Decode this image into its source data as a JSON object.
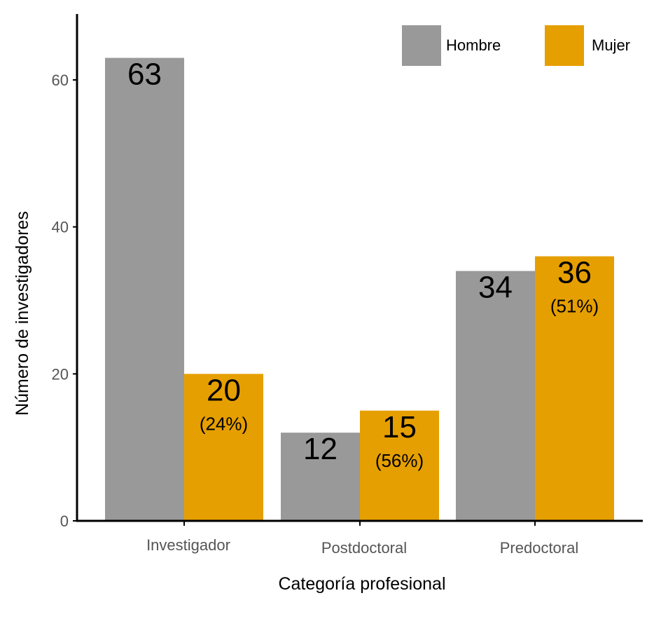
{
  "chart_data": {
    "type": "bar",
    "xlabel": "Categoría profesional",
    "ylabel": "Número de investigadores",
    "categories": [
      "Investigador",
      "Postdoctoral",
      "Predoctoral"
    ],
    "series": [
      {
        "name": "Hombre",
        "color": "#999999",
        "values": [
          63,
          12,
          34
        ]
      },
      {
        "name": "Mujer",
        "color": "#E69F00",
        "values": [
          20,
          15,
          36
        ],
        "pct_labels": [
          "(24%)",
          "(56%)",
          "(51%)"
        ]
      }
    ],
    "yticks": [
      "0",
      "20",
      "40",
      "60"
    ],
    "ylim": [
      0,
      60
    ],
    "legend": {
      "position": "top-right"
    },
    "grid": false
  }
}
